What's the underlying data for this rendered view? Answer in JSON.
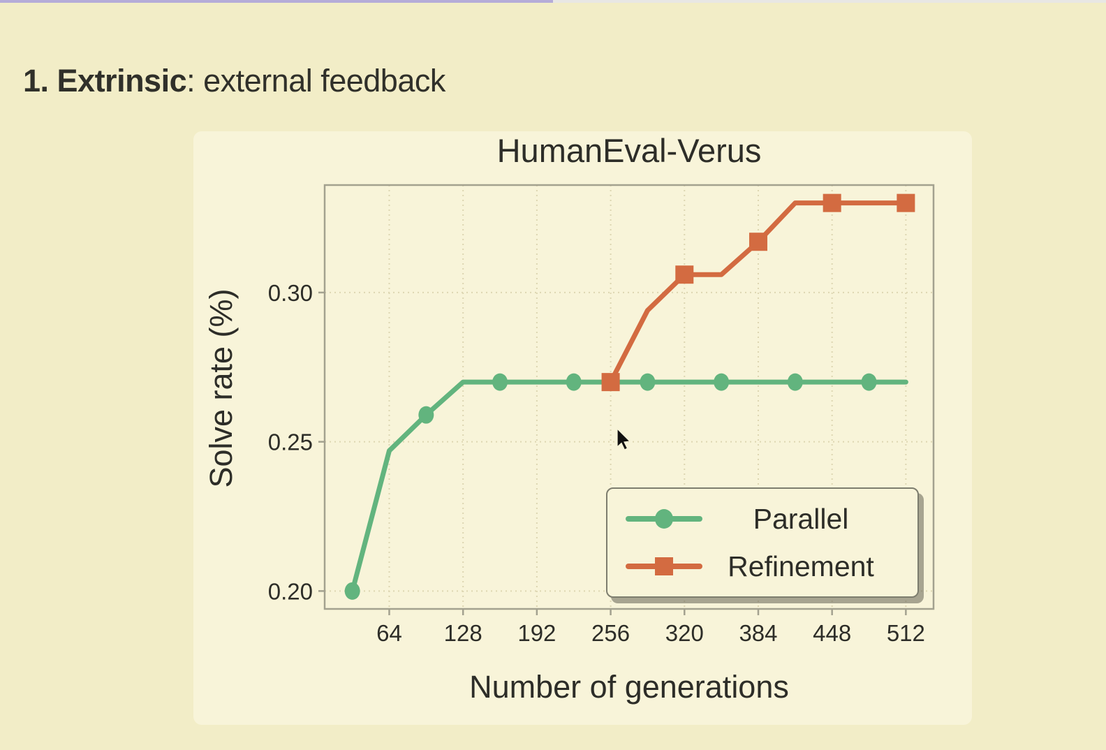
{
  "page": {
    "heading": {
      "bold": "1. Extrinsic",
      "rest": ": external feedback"
    },
    "top_strip": {
      "left_color": "#b5acd8",
      "right_color": "#e8e7e4"
    }
  },
  "chart_data": {
    "type": "line",
    "title": "HumanEval-Verus",
    "xlabel": "Number of generations",
    "ylabel": "Solve rate (%)",
    "x_ticks": [
      64,
      128,
      192,
      256,
      320,
      384,
      448,
      512
    ],
    "x_tick_labels": [
      "64",
      "128",
      "192",
      "256",
      "320",
      "384",
      "448",
      "512"
    ],
    "y_ticks": [
      0.2,
      0.25,
      0.3
    ],
    "y_tick_labels": [
      "0.20",
      "0.25",
      "0.30"
    ],
    "xlim": [
      8,
      536
    ],
    "ylim": [
      0.194,
      0.336
    ],
    "grid": true,
    "legend_position": "lower right",
    "series": [
      {
        "name": "Parallel",
        "color": "#62b47e",
        "marker": "circle",
        "marker_every": 2,
        "x": [
          32,
          64,
          96,
          128,
          160,
          192,
          224,
          256,
          288,
          320,
          352,
          384,
          416,
          448,
          480,
          512
        ],
        "y": [
          0.2,
          0.247,
          0.259,
          0.27,
          0.27,
          0.27,
          0.27,
          0.27,
          0.27,
          0.27,
          0.27,
          0.27,
          0.27,
          0.27,
          0.27,
          0.27
        ]
      },
      {
        "name": "Refinement",
        "color": "#d36b41",
        "marker": "square",
        "marker_every": 2,
        "x": [
          256,
          288,
          320,
          352,
          384,
          416,
          448,
          480,
          512
        ],
        "y": [
          0.27,
          0.294,
          0.306,
          0.306,
          0.317,
          0.33,
          0.33,
          0.33,
          0.33
        ]
      }
    ]
  }
}
